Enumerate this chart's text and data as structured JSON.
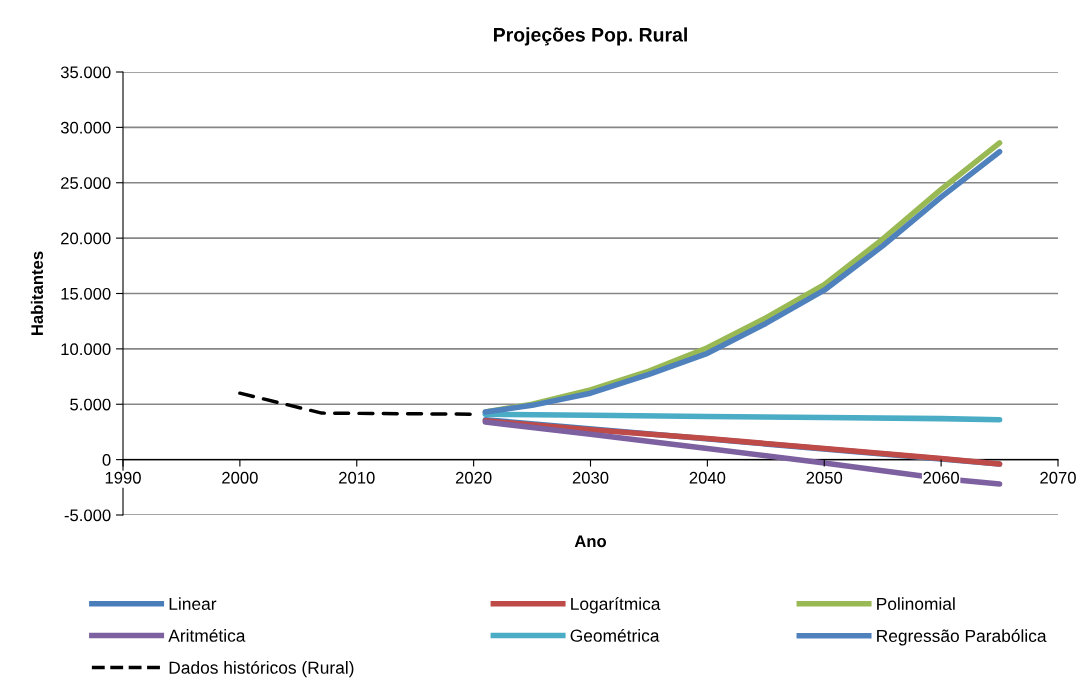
{
  "chart_data": {
    "type": "line",
    "title": "Projeções Pop. Rural",
    "xlabel": "Ano",
    "ylabel": "Habitantes",
    "xlim": [
      1990,
      2070
    ],
    "xticks": [
      1990,
      2000,
      2010,
      2020,
      2030,
      2040,
      2050,
      2060,
      2070
    ],
    "ylim": [
      -5000,
      35000
    ],
    "yticks": [
      {
        "value": -5000,
        "label": "-5.000"
      },
      {
        "value": 0,
        "label": "0"
      },
      {
        "value": 5000,
        "label": "5.000"
      },
      {
        "value": 10000,
        "label": "10.000"
      },
      {
        "value": 15000,
        "label": "15.000"
      },
      {
        "value": 20000,
        "label": "20.000"
      },
      {
        "value": 25000,
        "label": "25.000"
      },
      {
        "value": 30000,
        "label": "30.000"
      },
      {
        "value": 35000,
        "label": "35.000"
      }
    ],
    "grid": "y",
    "legend": "bottom",
    "marker": "none",
    "series": [
      {
        "name": "Linear",
        "color": "#4a7ebb",
        "x": [
          2021,
          2065
        ],
        "values": [
          3600,
          -400
        ]
      },
      {
        "name": "Logarítmica",
        "color": "#be4b48",
        "x": [
          2021,
          2030,
          2040,
          2050,
          2060,
          2065
        ],
        "values": [
          3500,
          2700,
          1900,
          1000,
          100,
          -400
        ]
      },
      {
        "name": "Polinomial",
        "color": "#98b954",
        "x": [
          2021,
          2025,
          2030,
          2035,
          2040,
          2045,
          2050,
          2055,
          2060,
          2065
        ],
        "values": [
          4300,
          5000,
          6300,
          8000,
          10100,
          12800,
          15800,
          19900,
          24400,
          28600
        ]
      },
      {
        "name": "Aritmética",
        "color": "#7d60a0",
        "x": [
          2021,
          2030,
          2040,
          2050,
          2060,
          2065
        ],
        "values": [
          3400,
          2300,
          1000,
          -300,
          -1700,
          -2200
        ]
      },
      {
        "name": "Geométrica",
        "color": "#4bacc6",
        "x": [
          2021,
          2030,
          2040,
          2050,
          2060,
          2065
        ],
        "values": [
          4100,
          4000,
          3900,
          3800,
          3700,
          3600
        ]
      },
      {
        "name": "Regressão Parabólica",
        "color": "#4f81bd",
        "x": [
          2021,
          2025,
          2030,
          2035,
          2040,
          2045,
          2050,
          2055,
          2060,
          2065
        ],
        "values": [
          4300,
          4900,
          6000,
          7700,
          9600,
          12300,
          15300,
          19300,
          23700,
          27800
        ]
      },
      {
        "name": "Dados históricos (Rural)",
        "color": "#000000",
        "line_style": "dashed",
        "x": [
          2000,
          2007,
          2020
        ],
        "values": [
          6000,
          4200,
          4100
        ]
      }
    ]
  }
}
